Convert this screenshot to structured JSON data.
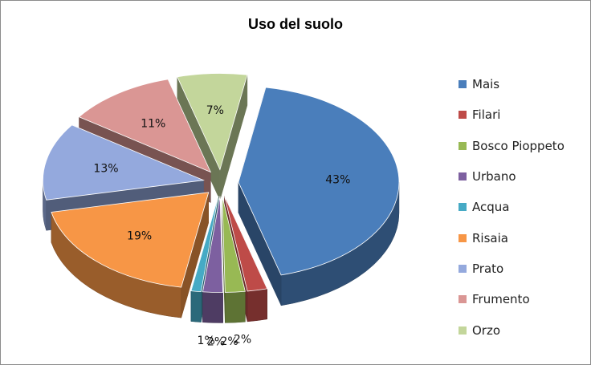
{
  "chart_data": {
    "type": "pie",
    "style": "3d-exploded",
    "title": "Uso del suolo",
    "legend_position": "right",
    "categories": [
      "Mais",
      "Filari",
      "Bosco Pioppeto",
      "Urbano",
      "Acqua",
      "Risaia",
      "Prato",
      "Frumento",
      "Orzo"
    ],
    "values": [
      43,
      2,
      2,
      2,
      1,
      19,
      13,
      11,
      7
    ],
    "value_labels": [
      "43%",
      "2%",
      "2%",
      "2%",
      "1%",
      "19%",
      "13%",
      "11%",
      "7%"
    ],
    "colors": [
      "#4a7ebb",
      "#be4b48",
      "#98b954",
      "#7d60a0",
      "#46aac5",
      "#f79646",
      "#94a9dd",
      "#da9694",
      "#c3d69b"
    ]
  }
}
